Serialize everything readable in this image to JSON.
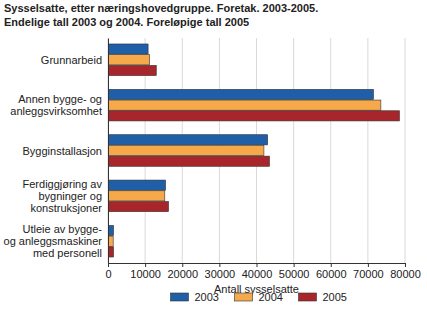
{
  "chart_data": {
    "type": "bar",
    "orientation": "horizontal",
    "title": "Sysselsatte, etter næringshovedgruppe. Foretak. 2003-2005.",
    "subtitle": "Endelige tall 2003 og 2004. Foreløpige tall 2005",
    "x_label": "Antall sysselsatte",
    "categories": [
      "Grunnarbeid",
      "Annen bygge- og anleggsvirksomhet",
      "Bygginstallasjon",
      "Ferdiggjøring av bygninger og konstruksjoner",
      "Utleie av bygge- og anleggsmaskiner med personell"
    ],
    "series": [
      {
        "name": "2003",
        "color": "#1f5fa8",
        "values": [
          10800,
          71500,
          43000,
          15500,
          1500
        ]
      },
      {
        "name": "2004",
        "color": "#f5a94a",
        "values": [
          11200,
          73500,
          42000,
          15300,
          1400
        ]
      },
      {
        "name": "2005",
        "color": "#a8262b",
        "values": [
          13000,
          78500,
          43500,
          16300,
          1500
        ]
      }
    ],
    "xlim": [
      0,
      80000
    ],
    "xticks": [
      0,
      10000,
      20000,
      30000,
      40000,
      50000,
      60000,
      70000,
      80000
    ],
    "grid": true,
    "legend": "bottom"
  }
}
